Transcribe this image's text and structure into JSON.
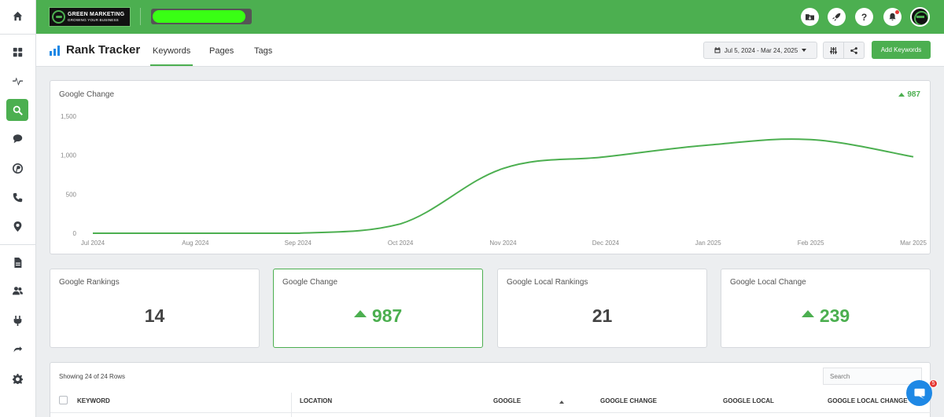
{
  "brand": {
    "line1": "GREEN MARKETING",
    "line2": "GROWING YOUR BUSINESS"
  },
  "header": {
    "title": "Rank Tracker",
    "tabs": [
      {
        "label": "Keywords",
        "active": true
      },
      {
        "label": "Pages",
        "active": false
      },
      {
        "label": "Tags",
        "active": false
      }
    ],
    "date_range": "Jul 5, 2024 - Mar 24, 2025",
    "add_button": "Add Keywords",
    "help_glyph": "?"
  },
  "sidebar": {
    "icons": [
      "home-icon",
      "dashboard-icon",
      "activity-icon",
      "search-icon",
      "chat-icon",
      "pinterest-icon",
      "phone-icon",
      "location-icon",
      "report-icon",
      "users-icon",
      "plug-icon",
      "tools-icon",
      "gear-icon"
    ],
    "active": "search-icon"
  },
  "chart": {
    "title": "Google Change",
    "change_value": "987",
    "accent_color": "#4caf50"
  },
  "chart_data": {
    "type": "line",
    "title": "Google Change",
    "x": [
      "Jul 2024",
      "Aug 2024",
      "Sep 2024",
      "Oct 2024",
      "Nov 2024",
      "Dec 2024",
      "Jan 2025",
      "Feb 2025",
      "Mar 2025"
    ],
    "y_ticks": [
      "0",
      "500",
      "1,000",
      "1,500"
    ],
    "ylim": [
      0,
      1500
    ],
    "series": [
      {
        "values": [
          0,
          0,
          0,
          120,
          830,
          980,
          1130,
          1200,
          980
        ]
      }
    ],
    "grid": false,
    "legend": "none"
  },
  "stats": [
    {
      "label": "Google Rankings",
      "value": "14",
      "trend": "none"
    },
    {
      "label": "Google Change",
      "value": "987",
      "trend": "up"
    },
    {
      "label": "Google Local Rankings",
      "value": "21",
      "trend": "none"
    },
    {
      "label": "Google Local Change",
      "value": "239",
      "trend": "up"
    }
  ],
  "table": {
    "rows_info": "Showing 24 of 24 Rows",
    "search_placeholder": "Search",
    "columns": [
      "KEYWORD",
      "LOCATION",
      "GOOGLE",
      "GOOGLE CHANGE",
      "GOOGLE LOCAL",
      "GOOGLE LOCAL CHANGE"
    ]
  },
  "chat": {
    "badge": "5"
  }
}
